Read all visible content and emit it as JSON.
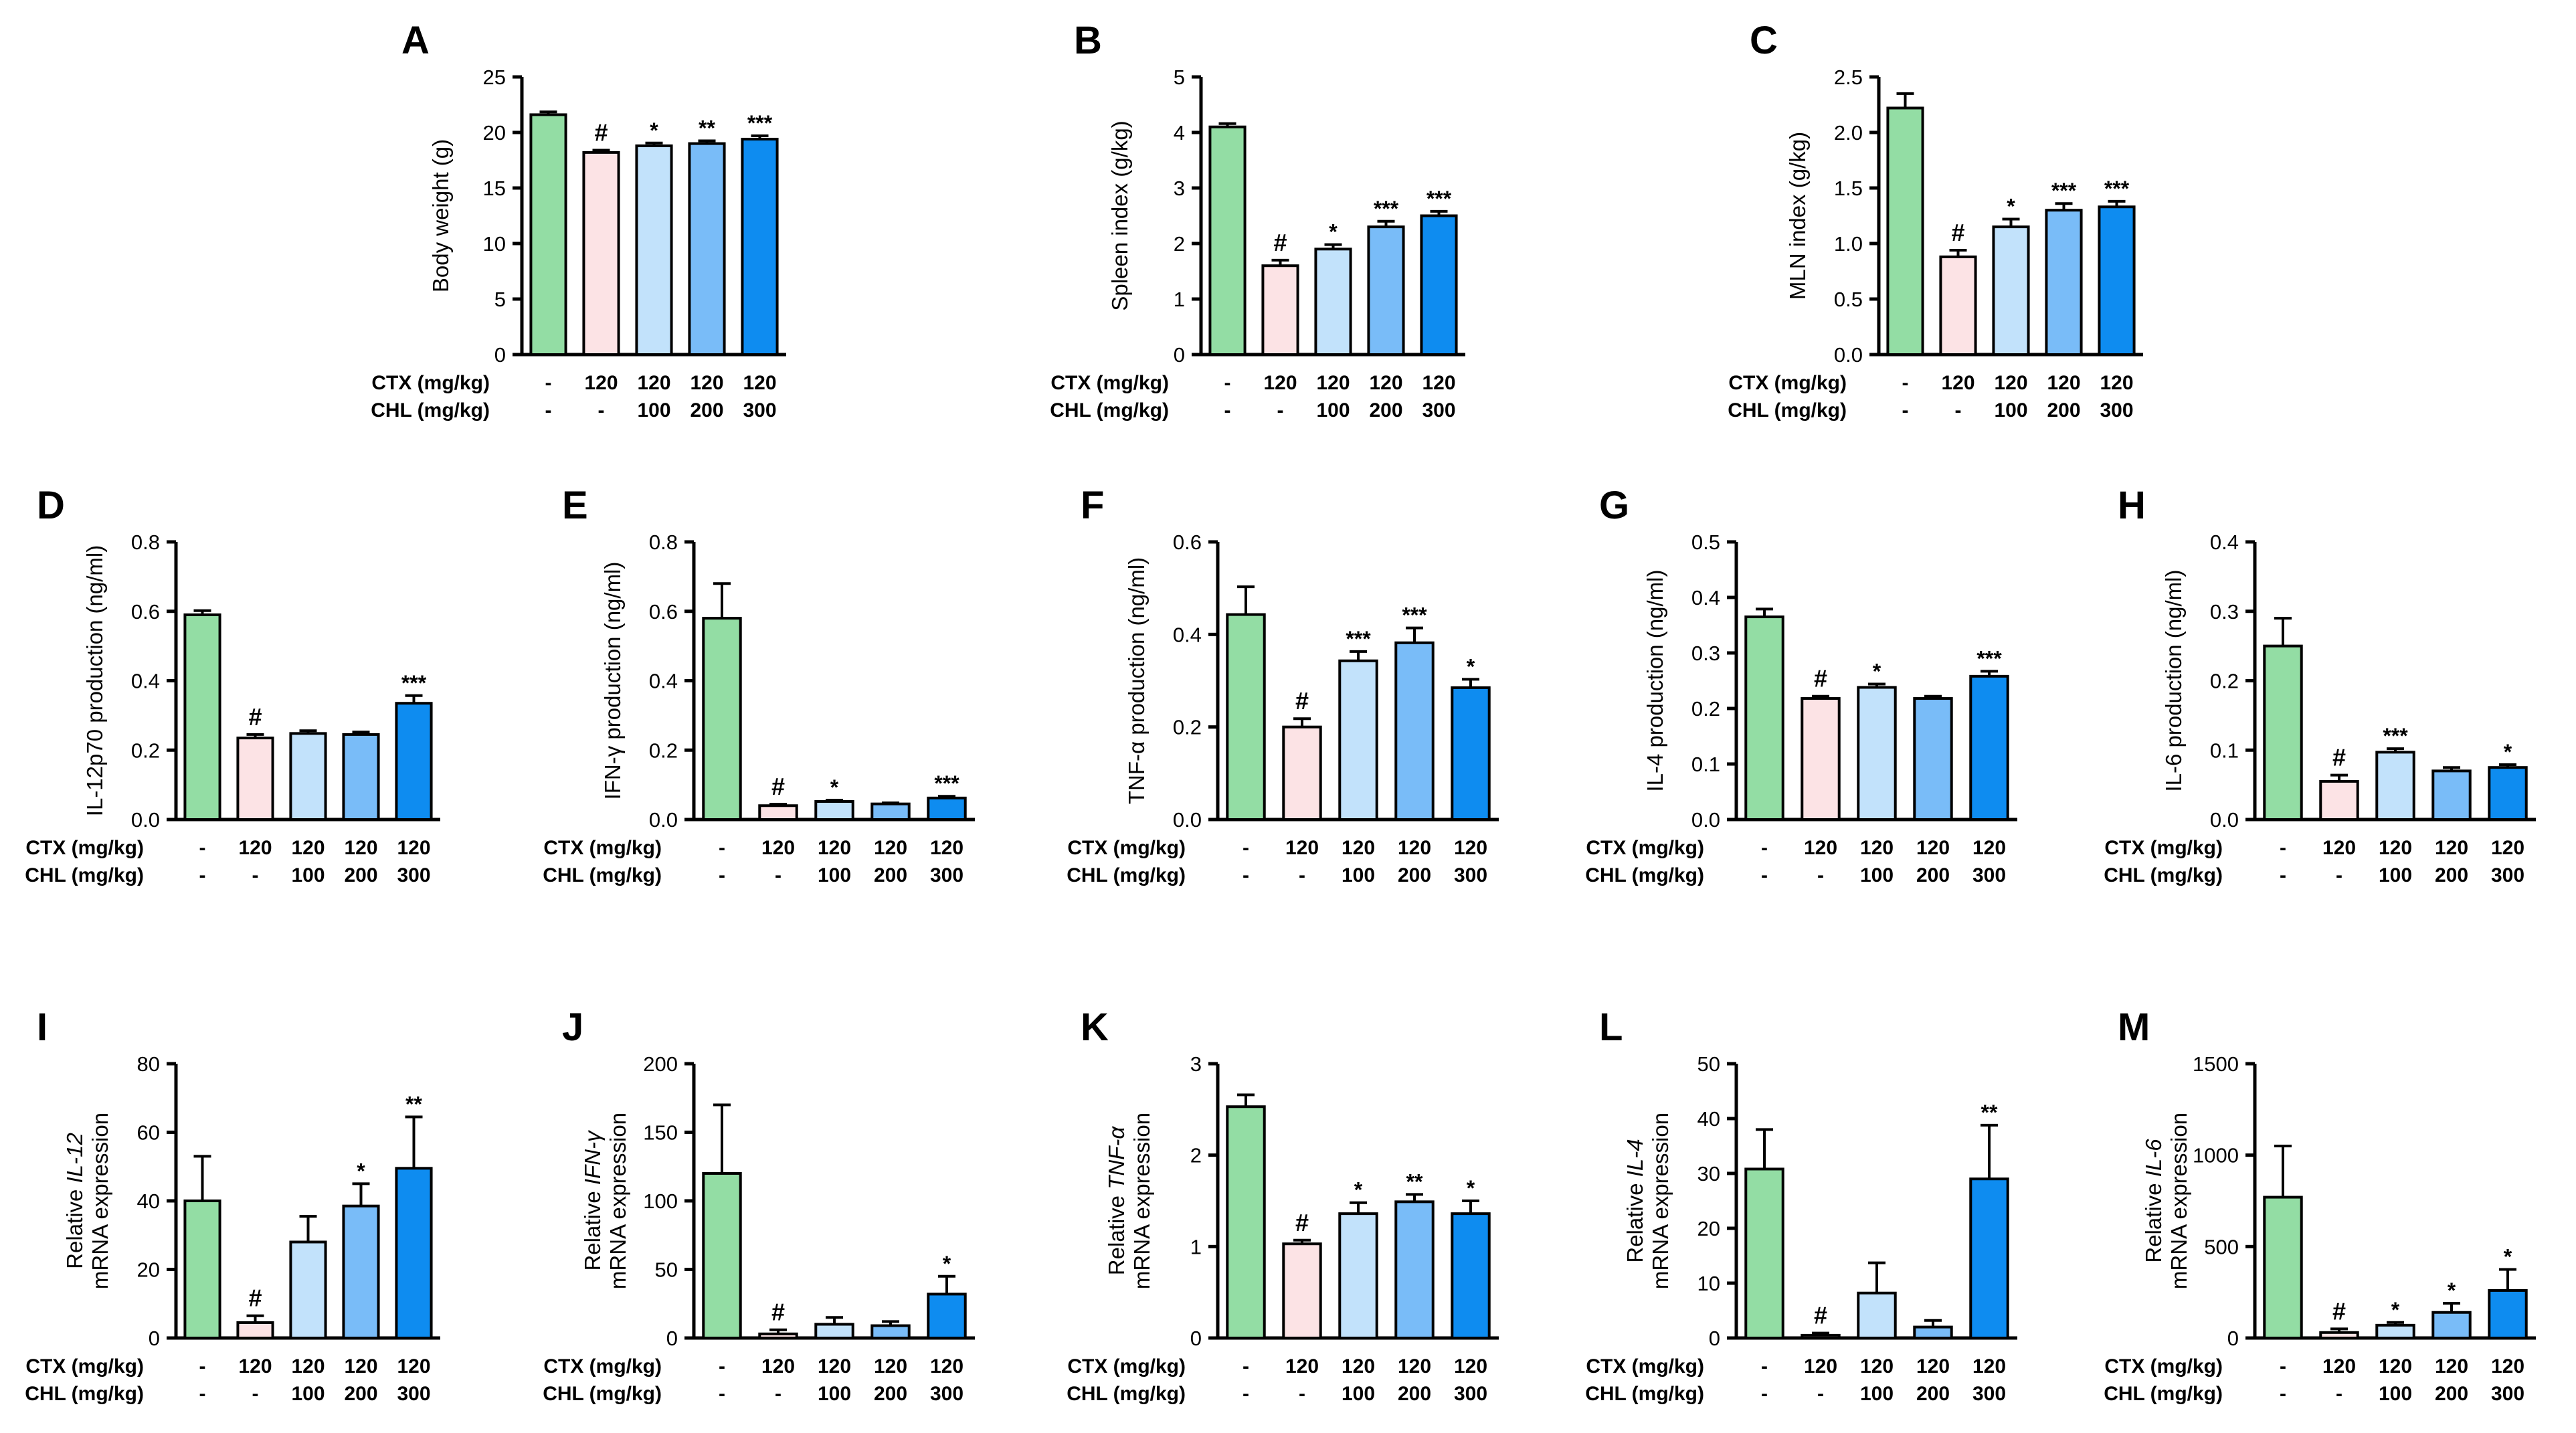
{
  "colors": {
    "control": "#93DDA4",
    "model": "#FCE3E5",
    "chl100": "#C2E2FB",
    "chl200": "#79BCF8",
    "chl300": "#0E8CF0",
    "axis": "#000000"
  },
  "group_labels": {
    "ctx_label": "CTX (mg/kg)",
    "chl_label": "CHL (mg/kg)",
    "ctx": [
      "-",
      "120",
      "120",
      "120",
      "120"
    ],
    "chl": [
      "-",
      "-",
      "100",
      "200",
      "300"
    ]
  },
  "chart_data": [
    {
      "type": "bar",
      "title": "A",
      "ylabel": "Body weight (g)",
      "ylim": [
        0,
        25
      ],
      "ticks": [
        "0",
        "5",
        "10",
        "15",
        "20",
        "25"
      ],
      "values": [
        21.6,
        18.2,
        18.8,
        19.0,
        19.4
      ],
      "errors": [
        0.25,
        0.2,
        0.25,
        0.25,
        0.3
      ],
      "marks": [
        "",
        "#",
        "*",
        "**",
        "***"
      ]
    },
    {
      "type": "bar",
      "title": "B",
      "ylabel": "Spleen index (g/kg)",
      "ylim": [
        0,
        5
      ],
      "ticks": [
        "0",
        "1",
        "2",
        "3",
        "4",
        "5"
      ],
      "values": [
        4.1,
        1.6,
        1.9,
        2.3,
        2.5
      ],
      "errors": [
        0.06,
        0.1,
        0.08,
        0.1,
        0.08
      ],
      "marks": [
        "",
        "#",
        "*",
        "***",
        "***"
      ]
    },
    {
      "type": "bar",
      "title": "C",
      "ylabel": "MLN index (g/kg)",
      "ylim": [
        0,
        2.5
      ],
      "ticks": [
        "0.0",
        "0.5",
        "1.0",
        "1.5",
        "2.0",
        "2.5"
      ],
      "values": [
        2.22,
        0.88,
        1.15,
        1.3,
        1.33
      ],
      "errors": [
        0.13,
        0.06,
        0.07,
        0.06,
        0.05
      ],
      "marks": [
        "",
        "#",
        "*",
        "***",
        "***"
      ]
    },
    {
      "type": "bar",
      "title": "D",
      "ylabel": "IL-12p70 production (ng/ml)",
      "ylim": [
        0,
        0.8
      ],
      "ticks": [
        "0.0",
        "0.2",
        "0.4",
        "0.6",
        "0.8"
      ],
      "values": [
        0.59,
        0.235,
        0.248,
        0.245,
        0.335
      ],
      "errors": [
        0.012,
        0.01,
        0.008,
        0.007,
        0.022
      ],
      "marks": [
        "",
        "#",
        "",
        "",
        "***"
      ]
    },
    {
      "type": "bar",
      "title": "E",
      "ylabel": "IFN-γ production (ng/ml)",
      "ylim": [
        0,
        0.8
      ],
      "ticks": [
        "0.0",
        "0.2",
        "0.4",
        "0.6",
        "0.8"
      ],
      "values": [
        0.58,
        0.04,
        0.052,
        0.045,
        0.062
      ],
      "errors": [
        0.1,
        0.004,
        0.004,
        0.003,
        0.005
      ],
      "marks": [
        "",
        "#",
        "*",
        "",
        "***"
      ]
    },
    {
      "type": "bar",
      "title": "F",
      "ylabel": "TNF-α production (ng/ml)",
      "ylim": [
        0,
        0.6
      ],
      "ticks": [
        "0.0",
        "0.2",
        "0.4",
        "0.6"
      ],
      "values": [
        0.443,
        0.2,
        0.343,
        0.382,
        0.285
      ],
      "errors": [
        0.06,
        0.018,
        0.02,
        0.032,
        0.018
      ],
      "marks": [
        "",
        "#",
        "***",
        "***",
        "*"
      ]
    },
    {
      "type": "bar",
      "title": "G",
      "ylabel": "IL-4 production (ng/ml)",
      "ylim": [
        0,
        0.5
      ],
      "ticks": [
        "0.0",
        "0.1",
        "0.2",
        "0.3",
        "0.4",
        "0.5"
      ],
      "values": [
        0.365,
        0.218,
        0.238,
        0.218,
        0.258
      ],
      "errors": [
        0.014,
        0.004,
        0.006,
        0.004,
        0.009
      ],
      "marks": [
        "",
        "#",
        "*",
        "",
        "***"
      ]
    },
    {
      "type": "bar",
      "title": "H",
      "ylabel": "IL-6 production (ng/ml)",
      "ylim": [
        0,
        0.4
      ],
      "ticks": [
        "0.0",
        "0.1",
        "0.2",
        "0.3",
        "0.4"
      ],
      "values": [
        0.25,
        0.055,
        0.097,
        0.07,
        0.075
      ],
      "errors": [
        0.04,
        0.009,
        0.005,
        0.005,
        0.004
      ],
      "marks": [
        "",
        "#",
        "***",
        "",
        "*"
      ]
    },
    {
      "type": "bar",
      "title": "I",
      "ylabel_prefix": "Relative ",
      "ylabel_gene": "IL-12",
      "ylabel2": "mRNA expression",
      "ylim": [
        0,
        80
      ],
      "ticks": [
        "0",
        "20",
        "40",
        "60",
        "80"
      ],
      "values": [
        40,
        4.5,
        28,
        38.5,
        49.5
      ],
      "errors": [
        13,
        2,
        7.5,
        6.5,
        15
      ],
      "marks": [
        "",
        "#",
        "",
        "*",
        "**"
      ]
    },
    {
      "type": "bar",
      "title": "J",
      "ylabel_prefix": "Relative ",
      "ylabel_gene": "IFN-γ",
      "ylabel2": "mRNA expression",
      "ylim": [
        0,
        200
      ],
      "ticks": [
        "0",
        "50",
        "100",
        "150",
        "200"
      ],
      "values": [
        120,
        3,
        10,
        9,
        32
      ],
      "errors": [
        50,
        3,
        5,
        3,
        13
      ],
      "marks": [
        "",
        "#",
        "",
        "",
        "*"
      ]
    },
    {
      "type": "bar",
      "title": "K",
      "ylabel_prefix": "Relative ",
      "ylabel_gene": "TNF-α",
      "ylabel2": "mRNA expression",
      "ylim": [
        0,
        3
      ],
      "ticks": [
        "0",
        "1",
        "2",
        "3"
      ],
      "values": [
        2.53,
        1.03,
        1.36,
        1.49,
        1.36
      ],
      "errors": [
        0.13,
        0.04,
        0.12,
        0.08,
        0.14
      ],
      "marks": [
        "",
        "#",
        "*",
        "**",
        "*"
      ]
    },
    {
      "type": "bar",
      "title": "L",
      "ylabel_prefix": "Relative ",
      "ylabel_gene": "IL-4",
      "ylabel2": "mRNA expression",
      "ylim": [
        0,
        50
      ],
      "ticks": [
        "0",
        "10",
        "20",
        "30",
        "40",
        "50"
      ],
      "values": [
        30.8,
        0.5,
        8.2,
        2,
        29
      ],
      "errors": [
        7.2,
        0.4,
        5.5,
        1.2,
        9.8
      ],
      "marks": [
        "",
        "#",
        "",
        "",
        "**"
      ]
    },
    {
      "type": "bar",
      "title": "M",
      "ylabel_prefix": "Relative ",
      "ylabel_gene": "IL-6",
      "ylabel2": "mRNA expression",
      "ylim": [
        0,
        1500
      ],
      "ticks": [
        "0",
        "500",
        "1000",
        "1500"
      ],
      "values": [
        770,
        30,
        70,
        140,
        260
      ],
      "errors": [
        280,
        20,
        15,
        50,
        115
      ],
      "marks": [
        "",
        "#",
        "*",
        "*",
        "*"
      ]
    }
  ]
}
